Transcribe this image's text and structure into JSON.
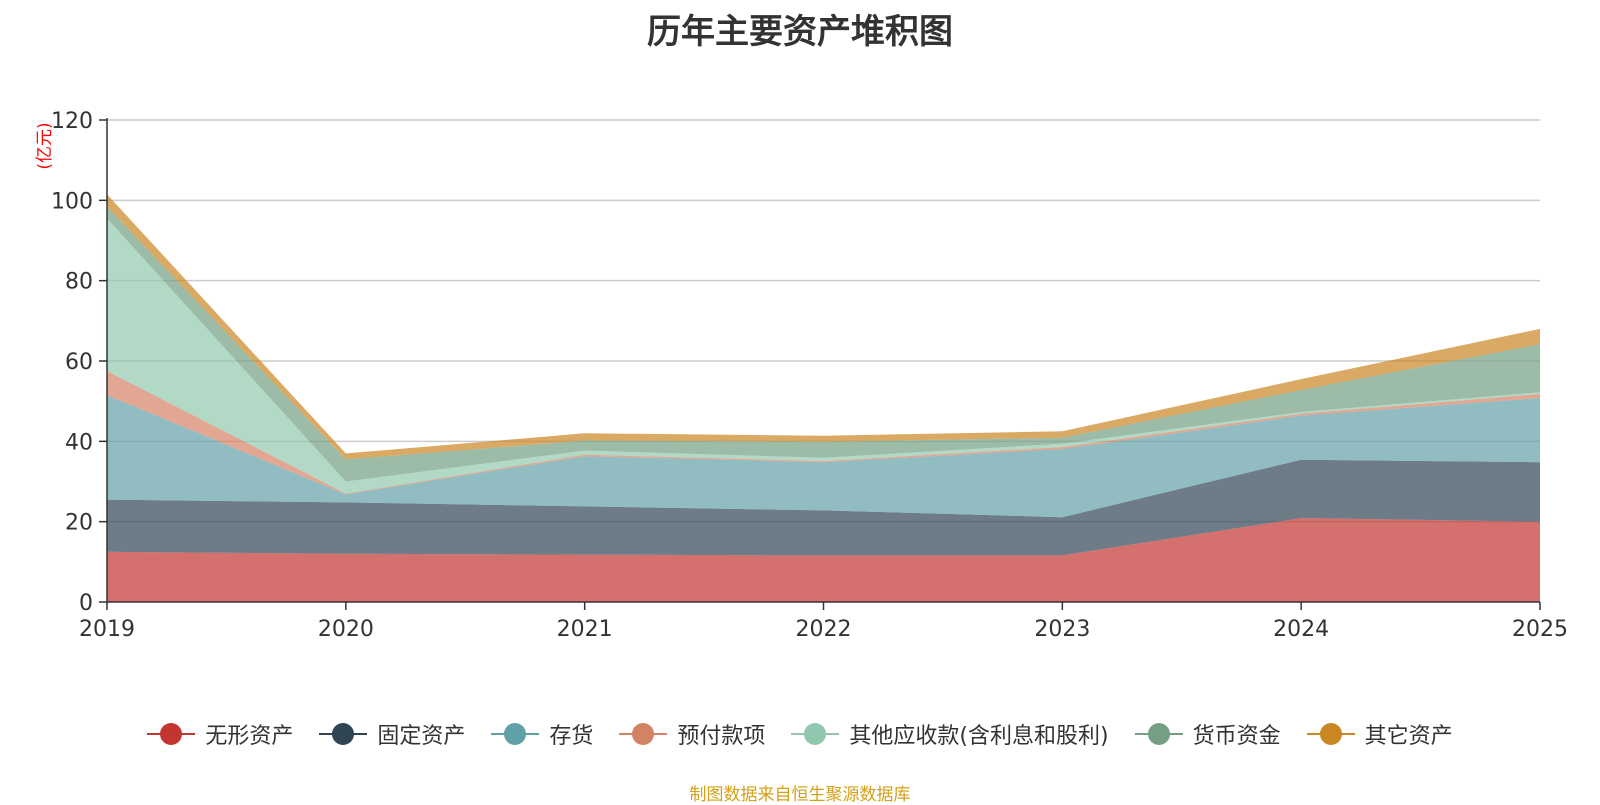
{
  "chart_data": {
    "type": "area",
    "stacked": true,
    "title": "历年主要资产堆积图",
    "unit_label": "(亿元)",
    "categories": [
      "2019",
      "2020",
      "2021",
      "2022",
      "2023",
      "2024",
      "2025"
    ],
    "ylim": [
      0,
      120
    ],
    "yticks": [
      0,
      20,
      40,
      60,
      80,
      100,
      120
    ],
    "grid": true,
    "legend_position": "bottom",
    "series": [
      {
        "name": "无形资产",
        "color": "#c23531",
        "values": [
          12.5,
          12.0,
          11.8,
          11.6,
          11.6,
          20.9,
          20.0
        ]
      },
      {
        "name": "固定资产",
        "color": "#2f4554",
        "values": [
          13.0,
          12.8,
          12.0,
          11.2,
          9.5,
          14.5,
          14.8
        ]
      },
      {
        "name": "存货",
        "color": "#61a0a8",
        "values": [
          26.0,
          2.0,
          12.5,
          12.0,
          17.0,
          11.0,
          16.0
        ]
      },
      {
        "name": "预付款项",
        "color": "#d48265",
        "values": [
          6.0,
          0.2,
          0.4,
          0.3,
          0.5,
          0.5,
          1.0
        ]
      },
      {
        "name": "其他应收款(含利息和股利)",
        "color": "#91c7ae",
        "values": [
          38.0,
          3.0,
          1.0,
          0.8,
          0.8,
          0.4,
          0.4
        ]
      },
      {
        "name": "货币资金",
        "color": "#749f83",
        "values": [
          3.0,
          5.5,
          2.5,
          4.0,
          1.5,
          5.5,
          12.0
        ]
      },
      {
        "name": "其它资产",
        "color": "#ca8622",
        "values": [
          3.0,
          1.5,
          1.8,
          1.5,
          1.6,
          2.7,
          3.8
        ]
      }
    ]
  },
  "source_note": "制图数据来自恒生聚源数据库"
}
